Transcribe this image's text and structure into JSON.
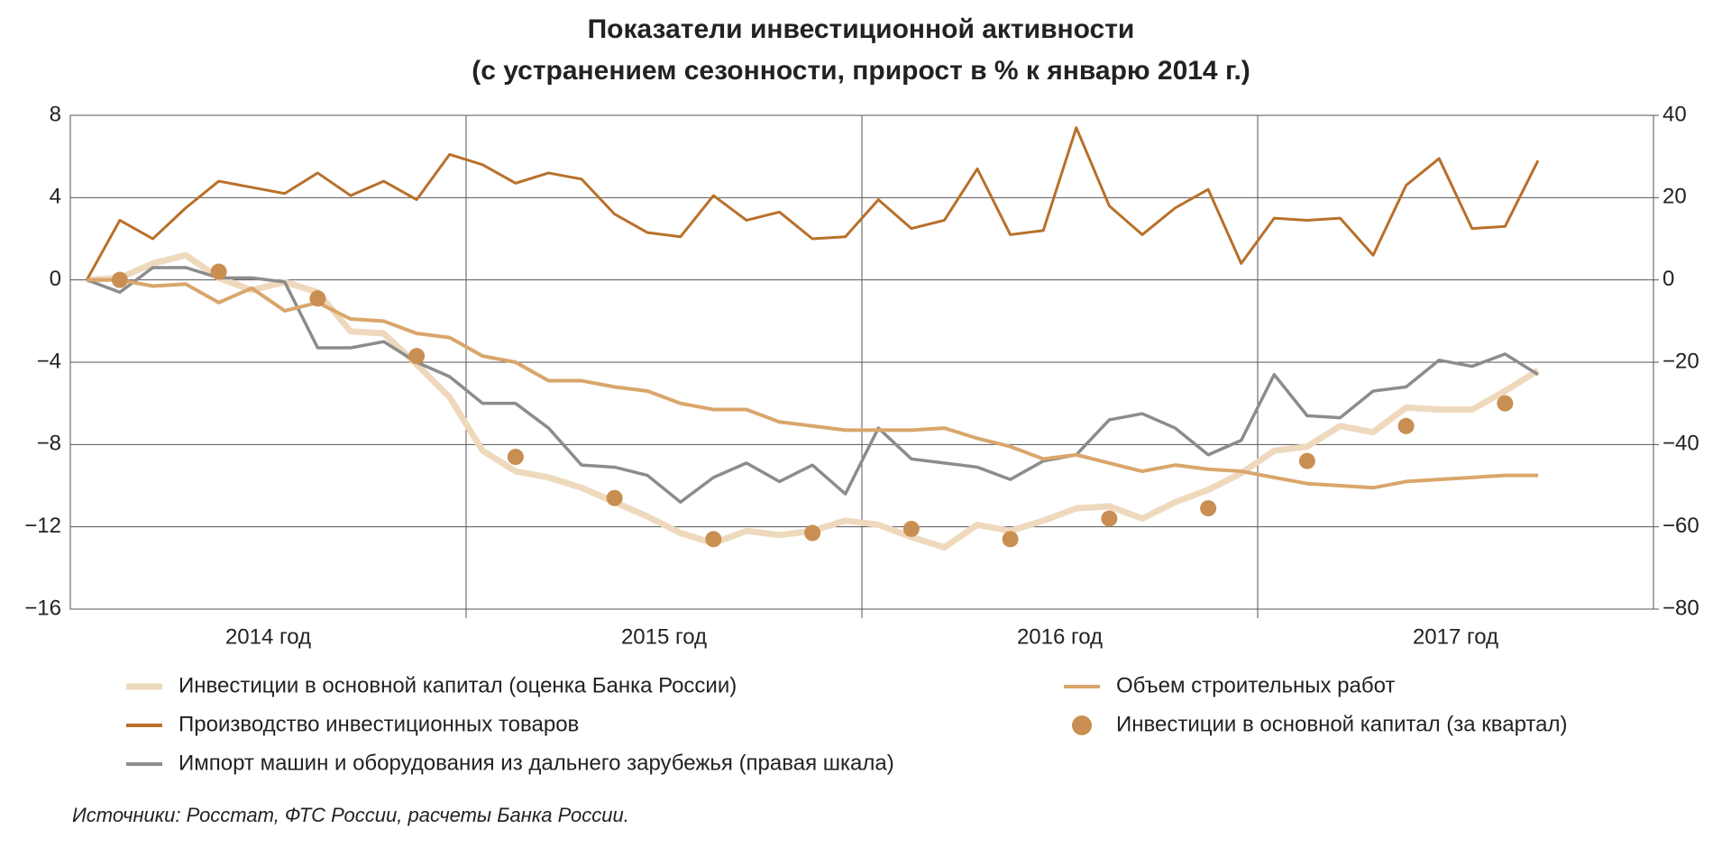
{
  "chart_data": {
    "type": "line",
    "title": "Показатели инвестиционной активности",
    "subtitle": "(с устранением сезонности, прирост в % к январю 2014 г.)",
    "source": "Источники: Росстат, ФТС России, расчеты Банка России.",
    "x": [
      0,
      1,
      2,
      3,
      4,
      5,
      6,
      7,
      8,
      9,
      10,
      11,
      12,
      13,
      14,
      15,
      16,
      17,
      18,
      19,
      20,
      21,
      22,
      23,
      24,
      25,
      26,
      27,
      28,
      29,
      30,
      31,
      32,
      33,
      34,
      35,
      36,
      37,
      38,
      39,
      40,
      41,
      42,
      43,
      44
    ],
    "xlim": [
      -0.5,
      47.5
    ],
    "xticks": [
      {
        "value": 5.5,
        "label": "2014 год"
      },
      {
        "value": 17.5,
        "label": "2015 год"
      },
      {
        "value": 29.5,
        "label": "2016 год"
      },
      {
        "value": 41.5,
        "label": "2017 год"
      }
    ],
    "xgrid": [
      11.5,
      23.5,
      35.5
    ],
    "ylim": [
      -16,
      8
    ],
    "yticks": [
      {
        "value": -16,
        "label": "−16"
      },
      {
        "value": -12,
        "label": "−12"
      },
      {
        "value": -8,
        "label": "−8"
      },
      {
        "value": -4,
        "label": "−4"
      },
      0,
      4,
      8
    ],
    "y2lim": [
      -80,
      40
    ],
    "y2ticks": [
      {
        "value": -80,
        "label": "−80"
      },
      {
        "value": -60,
        "label": "−60"
      },
      {
        "value": -40,
        "label": "−40"
      },
      {
        "value": -20,
        "label": "−20"
      },
      0,
      20,
      40
    ],
    "grid": true,
    "series": [
      {
        "name": "Инвестиции в основной капитал (оценка Банка России)",
        "type": "line",
        "color": "#efd9bd",
        "values": [
          0,
          0.1,
          0.8,
          1.2,
          0.1,
          -0.5,
          -0.1,
          -0.6,
          -2.5,
          -2.6,
          -4.1,
          -5.7,
          -8.3,
          -9.3,
          -9.6,
          -10.1,
          -10.8,
          -11.5,
          -12.3,
          -12.8,
          -12.2,
          -12.4,
          -12.2,
          -11.7,
          -11.9,
          -12.5,
          -13.0,
          -11.9,
          -12.2,
          -11.7,
          -11.1,
          -11.0,
          -11.6,
          -10.8,
          -10.2,
          -9.4,
          -8.3,
          -8.1,
          -7.1,
          -7.4,
          -6.2,
          -6.3,
          -6.3,
          -5.4,
          -4.4
        ]
      },
      {
        "name": "Производство инвестиционных товаров",
        "type": "line",
        "color": "#b8702a",
        "values": [
          0,
          2.9,
          2.0,
          3.5,
          4.8,
          4.5,
          4.2,
          5.2,
          4.1,
          4.8,
          3.9,
          6.1,
          5.6,
          4.7,
          5.2,
          4.9,
          3.2,
          2.3,
          2.1,
          4.1,
          2.9,
          3.3,
          2.0,
          2.1,
          3.9,
          2.5,
          2.9,
          5.4,
          2.2,
          2.4,
          7.4,
          3.6,
          2.2,
          3.5,
          4.4,
          0.8,
          3.0,
          2.9,
          3.0,
          1.2,
          4.6,
          5.9,
          2.5,
          2.6,
          5.8
        ]
      },
      {
        "name": "Импорт машин и оборудования из дальнего зарубежья (правая шкала)",
        "type": "line",
        "axis": "y2",
        "color": "#8c8c8c",
        "values": [
          0,
          -3,
          3,
          3,
          0.5,
          0.5,
          -0.5,
          -16.5,
          -16.5,
          -15,
          -20,
          -23.5,
          -30,
          -30,
          -36,
          -45,
          -45.5,
          -47.5,
          -54,
          -48,
          -44.5,
          -49,
          -45,
          -52,
          -36,
          -43.5,
          -44.5,
          -45.5,
          -48.5,
          -44,
          -42.5,
          -34,
          -32.5,
          -36,
          -42.5,
          -39,
          -23,
          -33,
          -33.5,
          -27,
          -26,
          -19.5,
          -21,
          -18,
          -23
        ]
      },
      {
        "name": "Объем строительных работ",
        "type": "line",
        "color": "#d9a66b",
        "values": [
          0,
          0,
          -0.3,
          -0.2,
          -1.1,
          -0.4,
          -1.5,
          -1.1,
          -1.9,
          -2.0,
          -2.6,
          -2.8,
          -3.7,
          -4.0,
          -4.9,
          -4.9,
          -5.2,
          -5.4,
          -6.0,
          -6.3,
          -6.3,
          -6.9,
          -7.1,
          -7.3,
          -7.3,
          -7.3,
          -7.2,
          -7.7,
          -8.1,
          -8.7,
          -8.5,
          -8.9,
          -9.3,
          -9.0,
          -9.2,
          -9.3,
          -9.6,
          -9.9,
          -10.0,
          -10.1,
          -9.8,
          -9.7,
          -9.6,
          -9.5,
          -9.5
        ]
      },
      {
        "name": "Инвестиции в основной капитал (за квартал)",
        "type": "scatter",
        "color": "#c98f52",
        "x": [
          1,
          4,
          7,
          10,
          13,
          16,
          19,
          22,
          25,
          28,
          31,
          34,
          37,
          40,
          43
        ],
        "values": [
          0,
          0.4,
          -0.9,
          -3.7,
          -8.6,
          -10.6,
          -12.6,
          -12.3,
          -12.1,
          -12.6,
          -11.6,
          -11.1,
          -8.8,
          -7.1,
          -6.0
        ]
      }
    ]
  }
}
